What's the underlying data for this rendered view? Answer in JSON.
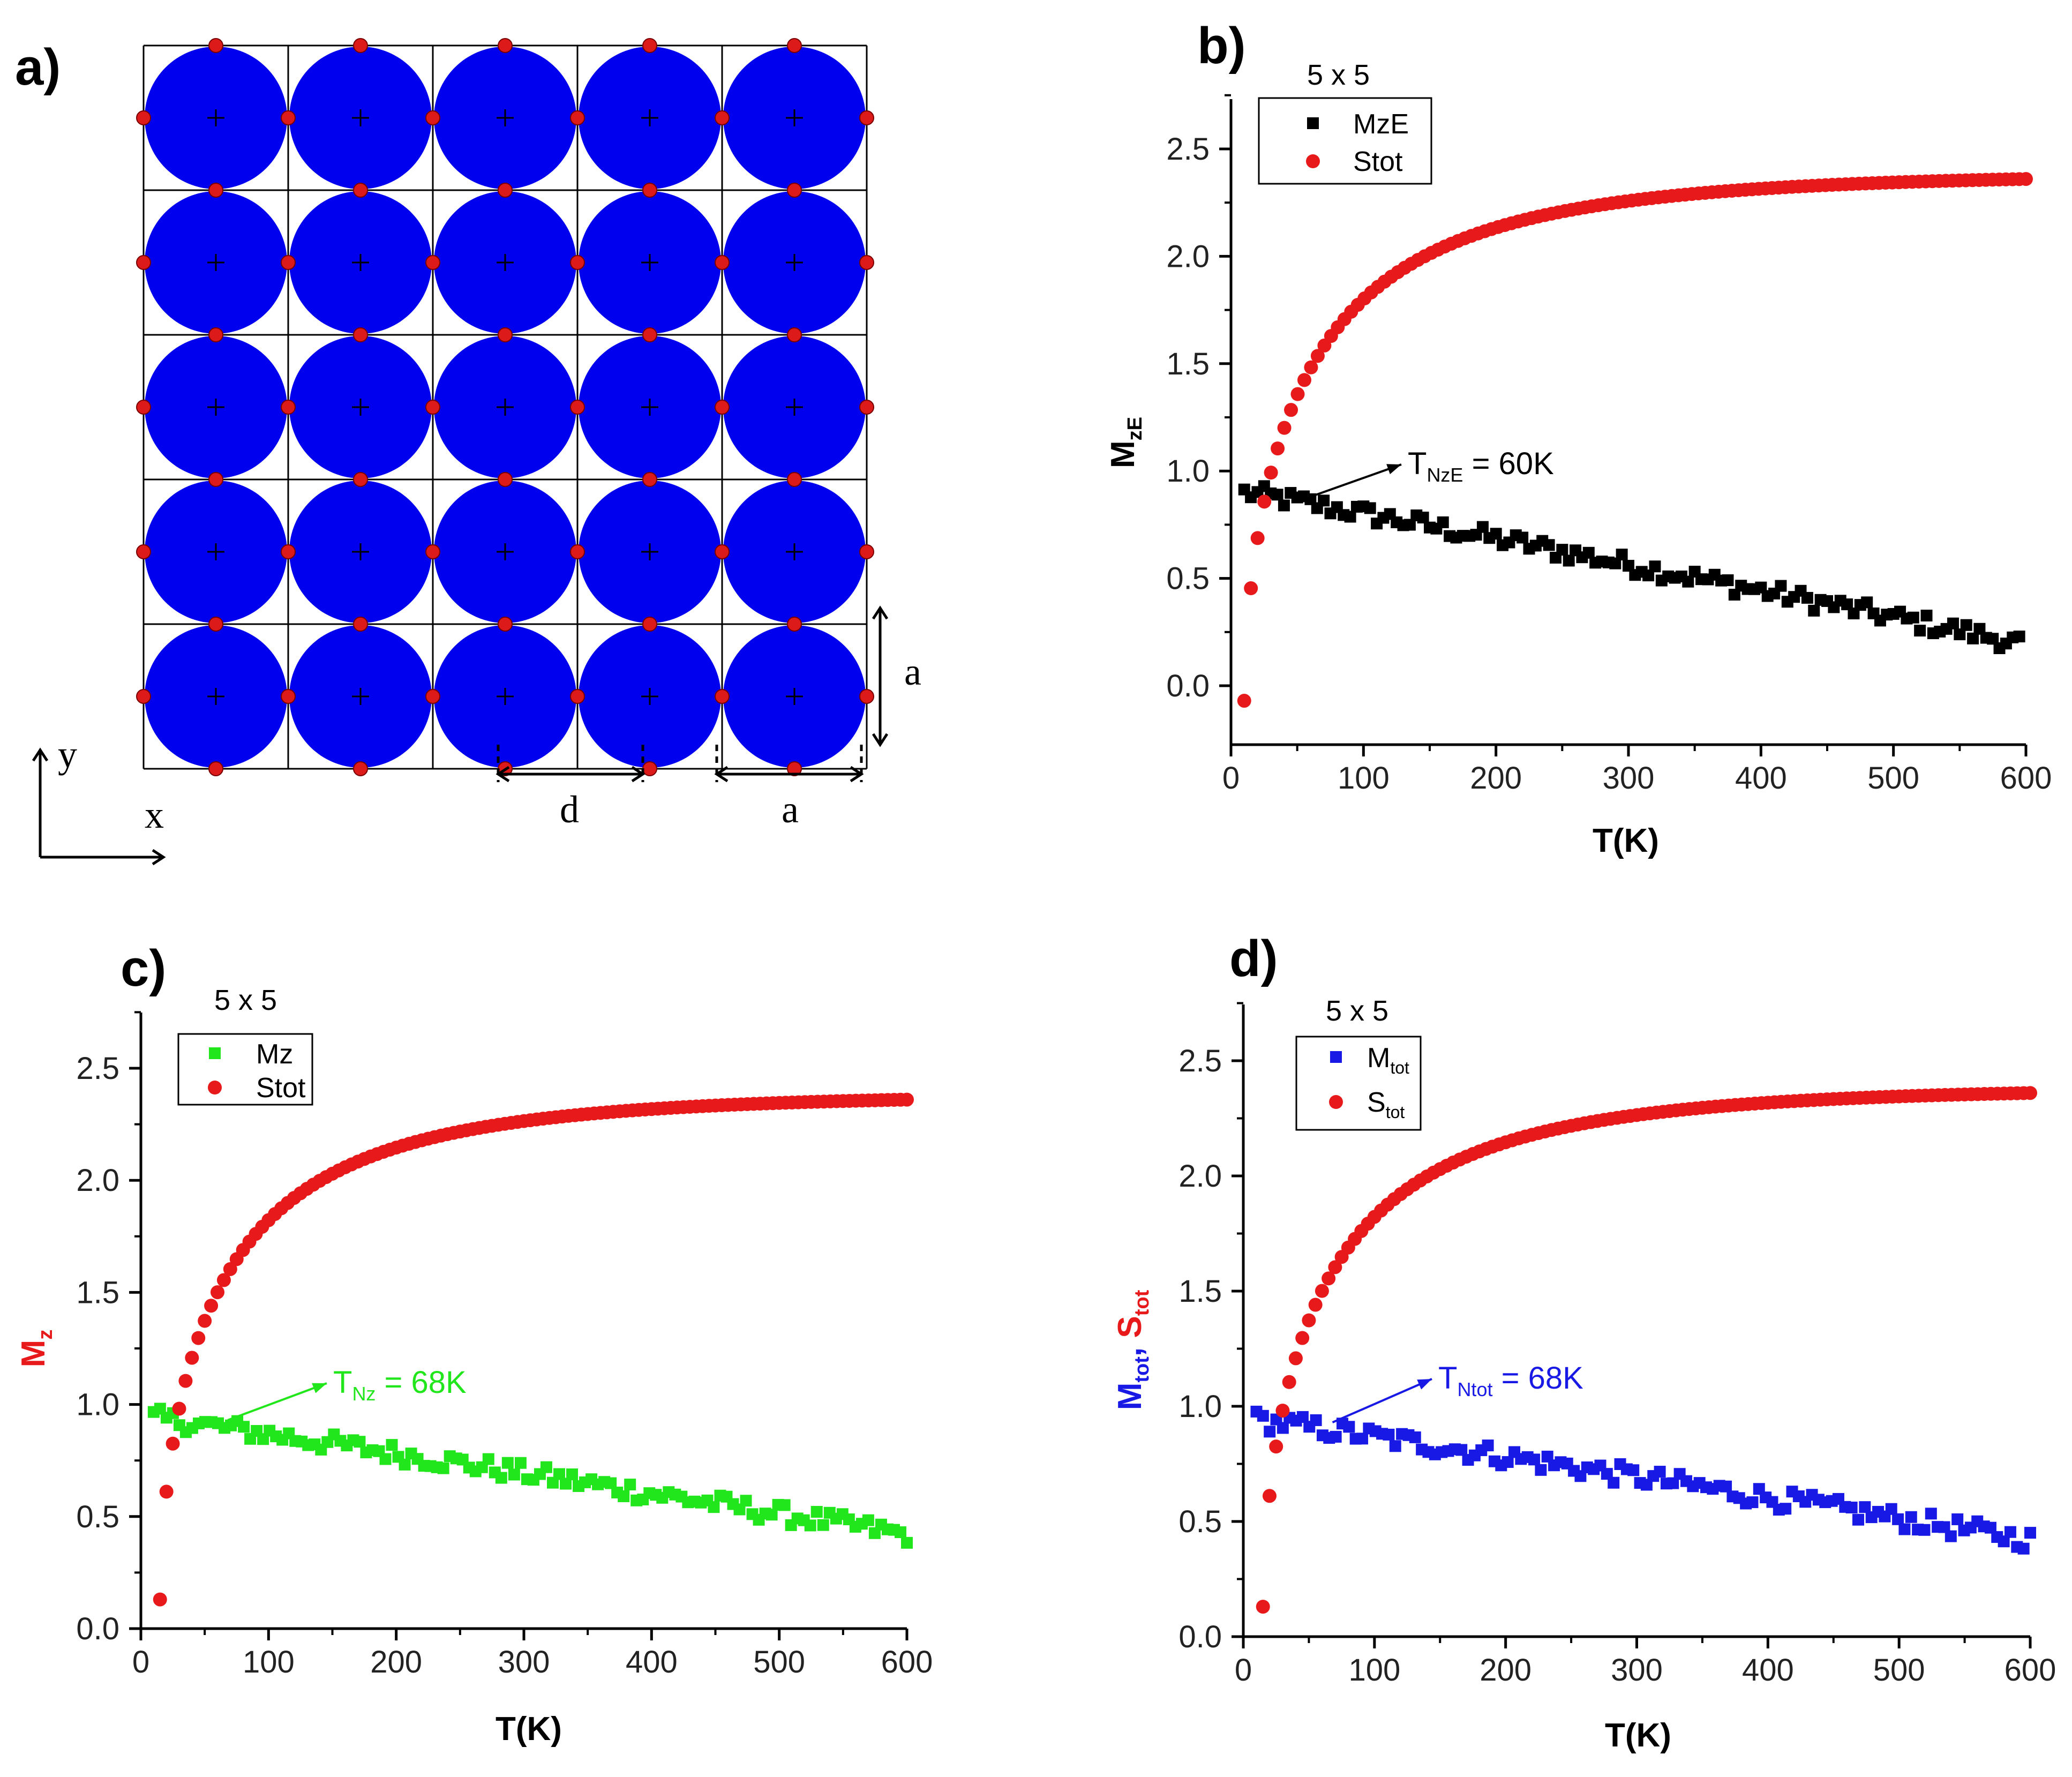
{
  "panels": {
    "a": {
      "label": "a)"
    },
    "b": {
      "label": "b)"
    },
    "c": {
      "label": "c)"
    },
    "d": {
      "label": "d)"
    }
  },
  "lattice": {
    "rows": 5,
    "cols": 5,
    "disc_color": "#0000ee",
    "site_color": "#dd1a1a",
    "labels": {
      "a_vertical": "a",
      "a_horizontal": "a",
      "d": "d",
      "x": "x",
      "y": "y"
    }
  },
  "colors": {
    "red": "#e8191a",
    "black": "#000000",
    "green": "#22e61c",
    "blue": "#1919e6"
  },
  "chart_data": [
    {
      "id": "b",
      "type": "scatter",
      "size_label": "5 x 5",
      "xlabel": "T(K)",
      "ylabel": "M",
      "ylabel_sub": "zE",
      "xlim": [
        0,
        600
      ],
      "ylim": [
        -0.25,
        2.75
      ],
      "xticks": [
        "0",
        "100",
        "200",
        "300",
        "400",
        "500",
        "600"
      ],
      "yticks": [
        "0.0",
        "0.5",
        "1.0",
        "1.5",
        "2.0",
        "2.5"
      ],
      "series": [
        {
          "name": "MzE",
          "marker": "square",
          "color": "#000000",
          "T_start": 10,
          "T_end": 595,
          "start_value": 0.9,
          "end_value": 0.2
        },
        {
          "name": "Stot",
          "marker": "circle",
          "color": "#e8191a",
          "T_start": 10,
          "T_end": 600,
          "start_value": -0.07,
          "end_value": 2.36
        }
      ],
      "annotation": {
        "main": "T",
        "sub": "NzE",
        "rest": " = 60K",
        "T": 60,
        "value": 0.88
      }
    },
    {
      "id": "c",
      "type": "scatter",
      "size_label": "5 x 5",
      "xlabel": "T(K)",
      "ylabel": "M",
      "ylabel_sub": "z",
      "xlim": [
        0,
        600
      ],
      "ylim": [
        0,
        2.75
      ],
      "xticks": [
        "0",
        "100",
        "200",
        "300",
        "400",
        "500",
        "600"
      ],
      "yticks": [
        "0.0",
        "0.5",
        "1.0",
        "1.5",
        "2.0",
        "2.5"
      ],
      "series": [
        {
          "name": "Mz",
          "marker": "square",
          "color": "#22e61c",
          "T_start": 10,
          "T_end": 600,
          "start_value": 0.94,
          "end_value": 0.42
        },
        {
          "name": "Stot",
          "marker": "circle",
          "color": "#e8191a",
          "T_start": 15,
          "T_end": 600,
          "start_value": 0.13,
          "end_value": 2.36
        }
      ],
      "annotation": {
        "main": "T",
        "sub": "Nz",
        "rest": " = 68K",
        "T": 68,
        "value": 0.93
      }
    },
    {
      "id": "d",
      "type": "scatter",
      "size_label": "5 x 5",
      "xlabel": "T(K)",
      "ylabel_parts": [
        {
          "text": "M",
          "sub": "tot",
          "color": "#1919e6",
          "sep": ", "
        },
        {
          "text": "S",
          "sub": "tot",
          "color": "#e8191a",
          "sep": ""
        }
      ],
      "xlim": [
        0,
        600
      ],
      "ylim": [
        0,
        2.75
      ],
      "xticks": [
        "0",
        "100",
        "200",
        "300",
        "400",
        "500",
        "600"
      ],
      "yticks": [
        "0.0",
        "0.5",
        "1.0",
        "1.5",
        "2.0",
        "2.5"
      ],
      "series": [
        {
          "name": "M",
          "name_sub": "tot",
          "marker": "square",
          "color": "#1919e6",
          "T_start": 10,
          "T_end": 600,
          "start_value": 0.94,
          "end_value": 0.42
        },
        {
          "name": "S",
          "name_sub": "tot",
          "marker": "circle",
          "color": "#e8191a",
          "T_start": 15,
          "T_end": 600,
          "start_value": 0.13,
          "end_value": 2.36
        }
      ],
      "annotation": {
        "main": "T",
        "sub": "Ntot",
        "rest": " = 68K",
        "T": 68,
        "value": 0.93
      }
    }
  ]
}
